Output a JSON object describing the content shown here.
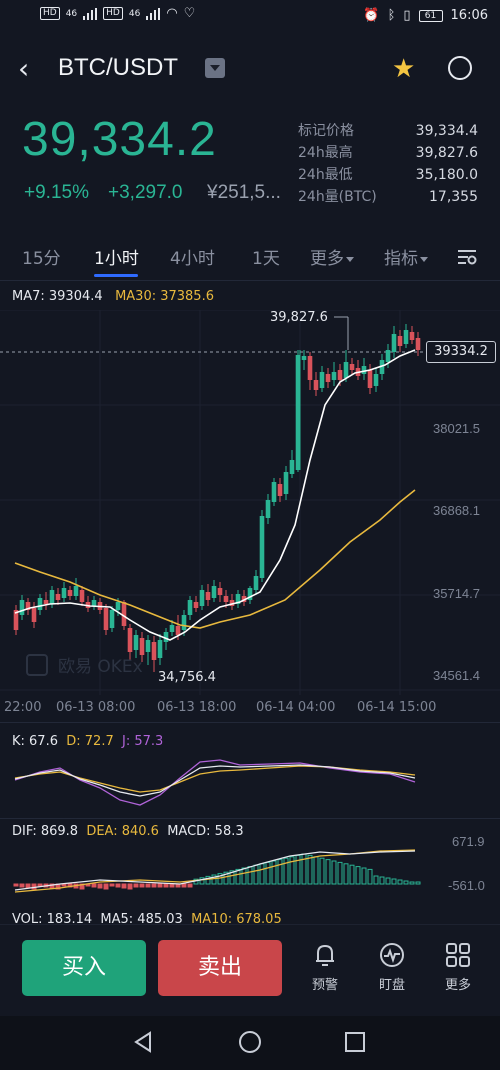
{
  "statusbar": {
    "time": "16:06",
    "battery": "61",
    "network1": "46",
    "network2": "46",
    "badge1": "HD",
    "badge2": "HD"
  },
  "header": {
    "pair": "BTC/USDT"
  },
  "ticker": {
    "price": "39,334.2",
    "change_pct": "+9.15%",
    "change_abs": "+3,297.0",
    "cny": "¥251,5..."
  },
  "stats": [
    {
      "label": "标记价格",
      "value": "39,334.4"
    },
    {
      "label": "24h最高",
      "value": "39,827.6"
    },
    {
      "label": "24h最低",
      "value": "35,180.0"
    },
    {
      "label": "24h量(BTC)",
      "value": "17,355"
    }
  ],
  "tabs": [
    "15分",
    "1小时",
    "4小时",
    "1天",
    "更多",
    "指标"
  ],
  "chart_legend": {
    "ma7": "MA7: 39304.4",
    "ma30": "MA30: 37385.6"
  },
  "chart_labels": {
    "high": "39,827.6",
    "low": "34,756.4",
    "last": "39334.2",
    "y_ticks": [
      "38021.5",
      "36868.1",
      "35714.7",
      "34561.4"
    ],
    "x_ticks": [
      "22:00",
      "06-13 08:00",
      "06-13 18:00",
      "06-14 04:00",
      "06-14 15:00"
    ]
  },
  "watermark": "欧易 OKEx",
  "kdj": {
    "k": "K: 67.6",
    "d": "D: 72.7",
    "j": "J: 57.3"
  },
  "macd": {
    "dif": "DIF: 869.8",
    "dea": "DEA: 840.6",
    "macd": "MACD: 58.3",
    "upper": "671.9",
    "lower": "-561.0"
  },
  "vol": {
    "vol": "VOL: 183.14",
    "ma5": "MA5: 485.03",
    "ma10": "MA10: 678.05"
  },
  "actions": {
    "buy": "买入",
    "sell": "卖出",
    "alert": "预警",
    "watch": "盯盘",
    "more": "更多"
  },
  "colors": {
    "up": "#2ab594",
    "down": "#d9535b",
    "ma7": "#e6e9ef",
    "ma30": "#e8b93e",
    "accent": "#2f6bff"
  }
}
